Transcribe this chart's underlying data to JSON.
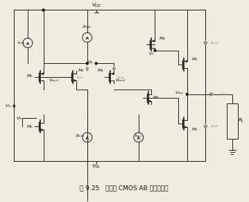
{
  "title": "图 9.25   实际的 CMOS AB 级输出电路",
  "background_color": "#f0ece0",
  "fig_width": 3.59,
  "fig_height": 2.91,
  "dpi": 100,
  "line_color": "#1a1a1a",
  "gray_color": "#888888",
  "text_color": "#111111"
}
